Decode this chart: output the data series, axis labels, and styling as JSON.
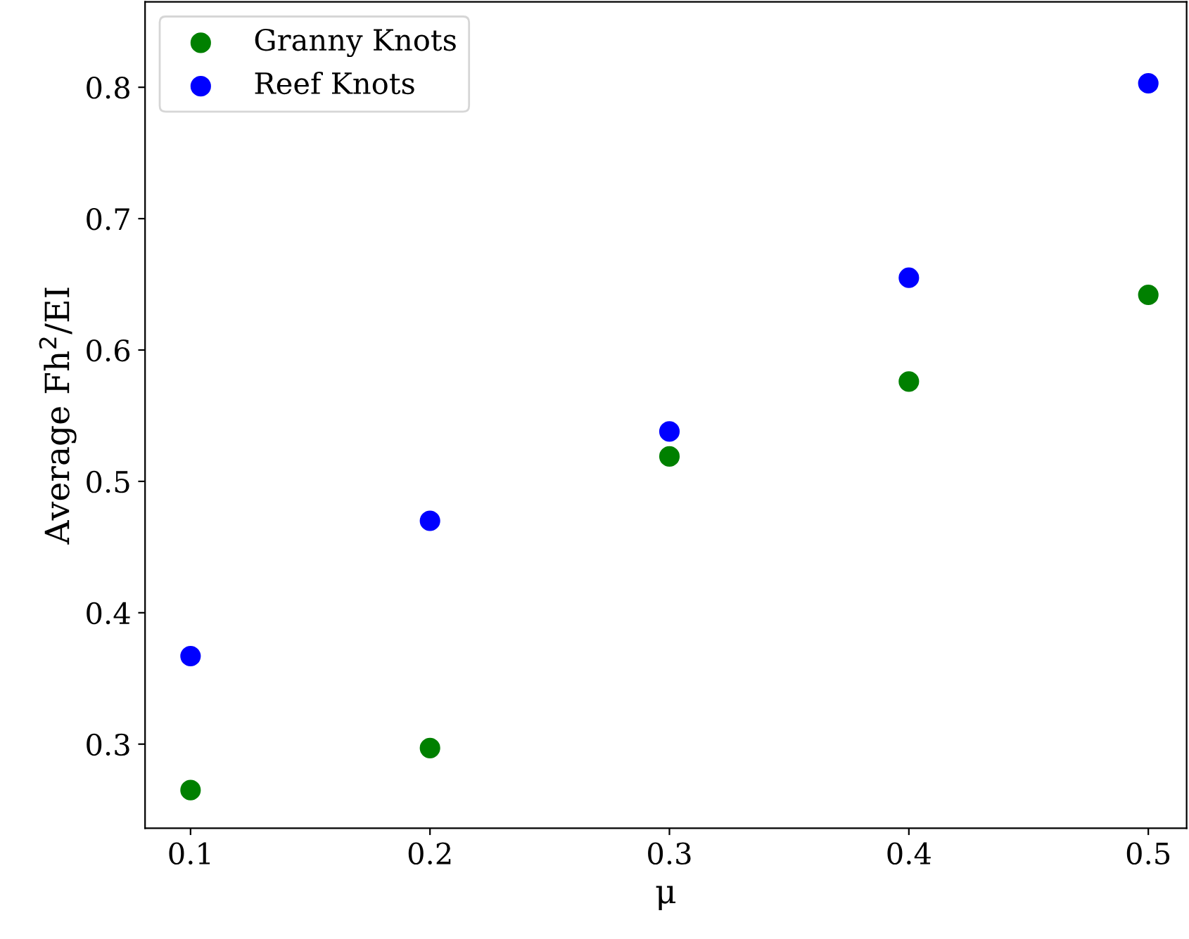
{
  "chart_data": {
    "type": "scatter",
    "xlabel": "μ",
    "ylabel": "Average Fh$^{2}$/EI",
    "x": [
      0.1,
      0.2,
      0.3,
      0.4,
      0.5
    ],
    "series": [
      {
        "name": "Granny Knots",
        "color": "#008000",
        "values": [
          0.265,
          0.297,
          0.519,
          0.576,
          0.642
        ]
      },
      {
        "name": "Reef Knots",
        "color": "#0000ff",
        "values": [
          0.367,
          0.47,
          0.538,
          0.655,
          0.803
        ]
      }
    ],
    "xlim": [
      0.081,
      0.516
    ],
    "ylim": [
      0.236,
      0.865
    ],
    "xticks": [
      0.1,
      0.2,
      0.3,
      0.4,
      0.5
    ],
    "yticks": [
      0.3,
      0.4,
      0.5,
      0.6,
      0.7,
      0.8
    ],
    "marker": "circle",
    "legend": "top left",
    "grid": false
  }
}
